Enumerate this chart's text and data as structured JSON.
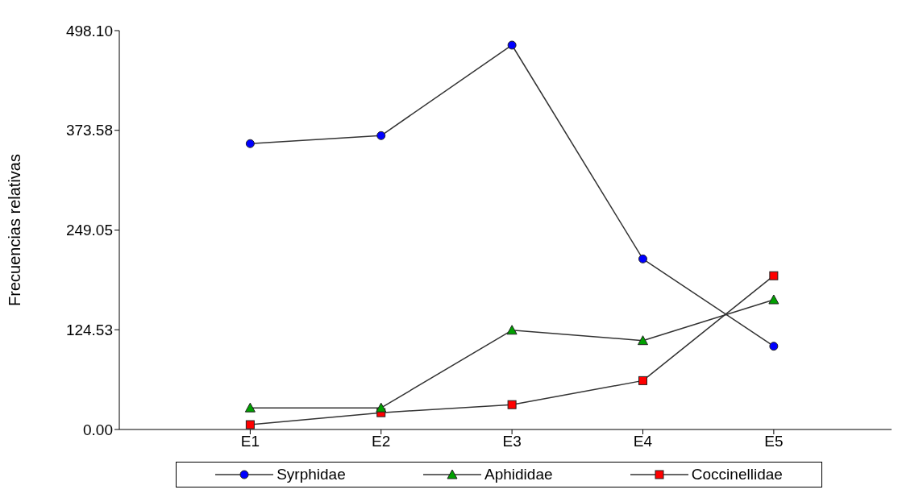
{
  "chart_data": {
    "type": "line",
    "ylabel": "Frecuencias relativas",
    "categories": [
      "E1",
      "E2",
      "E3",
      "E4",
      "E5"
    ],
    "ylim": [
      0,
      498.1
    ],
    "yticks": [
      {
        "value": 0,
        "label": "0.00"
      },
      {
        "value": 124.53,
        "label": "124.53"
      },
      {
        "value": 249.05,
        "label": "249.05"
      },
      {
        "value": 373.58,
        "label": "373.58"
      },
      {
        "value": 498.1,
        "label": "498.10"
      }
    ],
    "grid": false,
    "legend": "bottom",
    "series": [
      {
        "name": "Syrphidae",
        "color": "#0000ff",
        "marker": "circle",
        "values": [
          357,
          367,
          480,
          213,
          104
        ]
      },
      {
        "name": "Aphididae",
        "color": "#00a000",
        "marker": "triangle",
        "values": [
          27,
          27,
          124,
          111,
          162
        ]
      },
      {
        "name": "Coccinellidae",
        "color": "#ff0000",
        "marker": "square",
        "values": [
          6,
          21,
          31,
          61,
          192
        ]
      }
    ]
  }
}
